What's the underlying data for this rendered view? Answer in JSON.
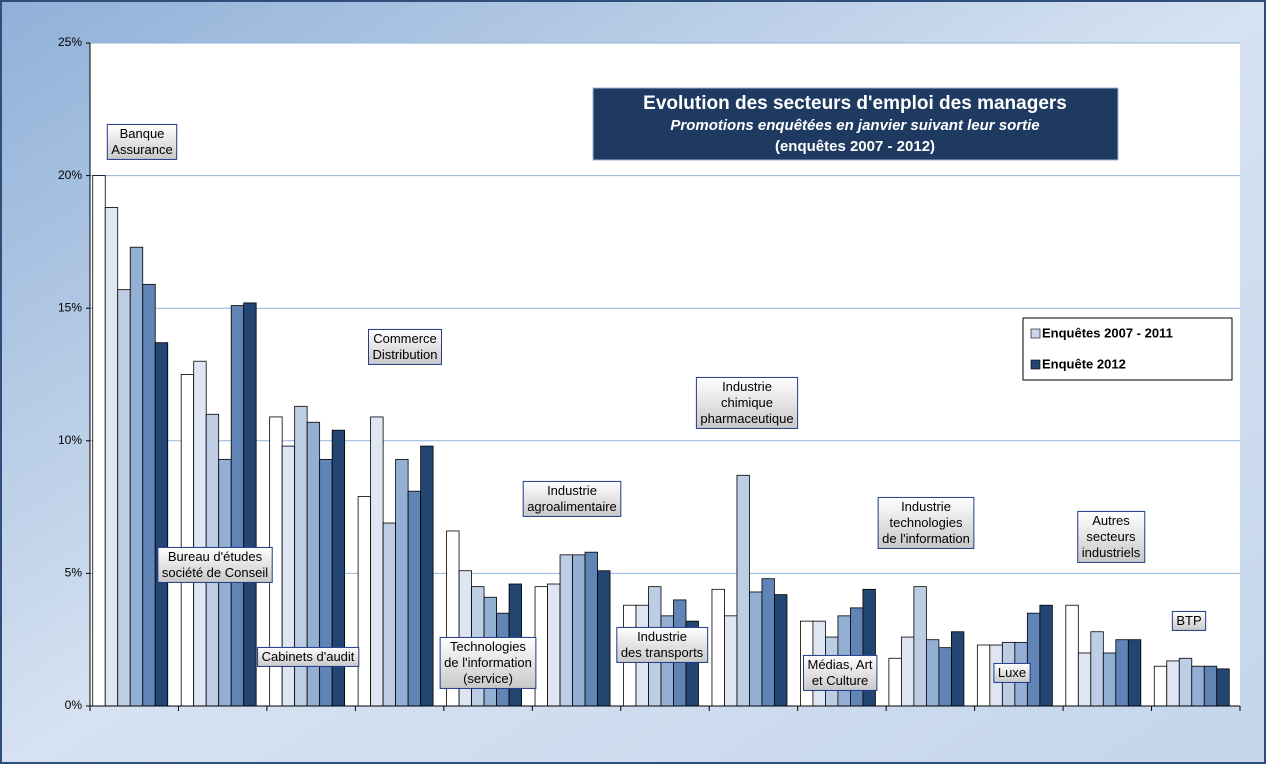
{
  "chart_data": {
    "type": "bar",
    "title": "Evolution des secteurs d'emploi des managers",
    "subtitle": "Promotions enquêtées en janvier suivant leur sortie",
    "note": "(enquêtes 2007 - 2012)",
    "categories": [
      "Banque\nAssurance",
      "Bureau d'études\nsociété de Conseil",
      "Cabinets d'audit",
      "Commerce\nDistribution",
      "Technologies\nde l'information\n(service)",
      "Industrie\nagroalimentaire",
      "Industrie\ndes transports",
      "Industrie\nchimique\npharmaceutique",
      "Médias, Art\net Culture",
      "Industrie\ntechnologies\nde l'information",
      "Luxe",
      "Autres\nsecteurs\nindustriels",
      "BTP"
    ],
    "series": [
      {
        "color": "#ffffff",
        "values": [
          20.0,
          12.5,
          10.9,
          7.9,
          6.6,
          4.5,
          3.8,
          4.4,
          3.2,
          1.8,
          2.3,
          3.8,
          1.5
        ]
      },
      {
        "color": "#dde6f2",
        "values": [
          18.8,
          13.0,
          9.8,
          10.9,
          5.1,
          4.6,
          3.8,
          3.4,
          3.2,
          2.6,
          2.3,
          2.0,
          1.7
        ]
      },
      {
        "color": "#bccde4",
        "values": [
          15.7,
          11.0,
          11.3,
          6.9,
          4.5,
          5.7,
          4.5,
          8.7,
          2.6,
          4.5,
          2.4,
          2.8,
          1.8
        ]
      },
      {
        "color": "#93afd3",
        "values": [
          17.3,
          9.3,
          10.7,
          9.3,
          4.1,
          5.7,
          3.4,
          4.3,
          3.4,
          2.5,
          2.4,
          2.0,
          1.5
        ]
      },
      {
        "color": "#5f84b5",
        "values": [
          15.9,
          15.1,
          9.3,
          8.1,
          3.5,
          5.8,
          4.0,
          4.8,
          3.7,
          2.2,
          3.5,
          2.5,
          1.5
        ]
      },
      {
        "color": "#234571",
        "values": [
          13.7,
          15.2,
          10.4,
          9.8,
          4.6,
          5.1,
          3.2,
          4.2,
          4.4,
          2.8,
          3.8,
          2.5,
          1.4
        ]
      }
    ],
    "legend": [
      {
        "name": "Enquêtes 2007 - 2011",
        "color": "#c8d6ea"
      },
      {
        "name": "Enquête 2012",
        "color": "#234571"
      }
    ],
    "ylim": [
      0,
      25
    ],
    "yticks": [
      {
        "value": 0,
        "label": "0%"
      },
      {
        "value": 5,
        "label": "5%"
      },
      {
        "value": 10,
        "label": "10%"
      },
      {
        "value": 15,
        "label": "15%"
      },
      {
        "value": 20,
        "label": "20%"
      },
      {
        "value": 25,
        "label": "25%"
      }
    ],
    "grid": true
  }
}
